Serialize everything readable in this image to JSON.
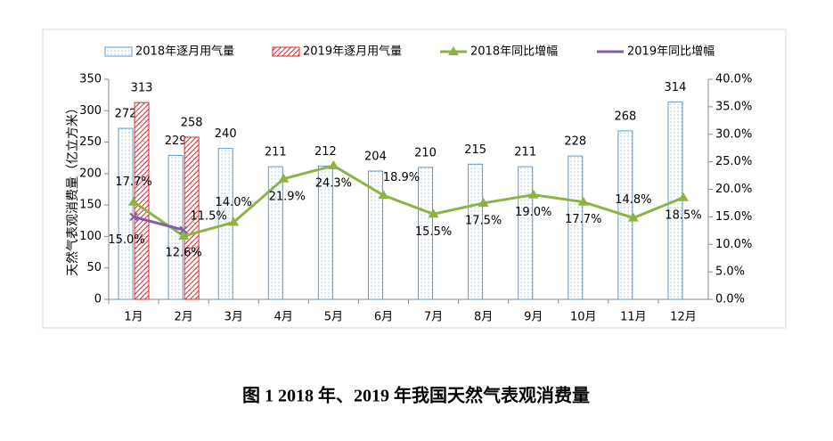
{
  "chart_data": {
    "type": "bar_line",
    "title": "图 1 2018 年、2019 年我国天然气表观消费量",
    "y_label": "天然气表观消费量（亿立方米）",
    "categories": [
      "1月",
      "2月",
      "3月",
      "4月",
      "5月",
      "6月",
      "7月",
      "8月",
      "9月",
      "10月",
      "11月",
      "12月"
    ],
    "ylim": [
      0,
      350
    ],
    "yticks": [
      0,
      50,
      100,
      150,
      200,
      250,
      300,
      350
    ],
    "y2lim": [
      0,
      40
    ],
    "y2ticks": [
      {
        "value": 0,
        "label": "0.0%"
      },
      {
        "value": 5,
        "label": "5.0%"
      },
      {
        "value": 10,
        "label": "10.0%"
      },
      {
        "value": 15,
        "label": "15.0%"
      },
      {
        "value": 20,
        "label": "20.0%"
      },
      {
        "value": 25,
        "label": "25.0%"
      },
      {
        "value": 30,
        "label": "30.0%"
      },
      {
        "value": 35,
        "label": "35.0%"
      },
      {
        "value": 40,
        "label": "40.0%"
      }
    ],
    "legend": "top",
    "series": [
      {
        "name": "2018年逐月用气量",
        "type": "bar",
        "color": "#5b9bd5",
        "values": [
          272,
          229,
          240,
          211,
          212,
          204,
          210,
          215,
          211,
          228,
          268,
          314
        ]
      },
      {
        "name": "2019年逐月用气量",
        "type": "bar",
        "color": "#e0262b",
        "values": [
          313,
          258,
          null,
          null,
          null,
          null,
          null,
          null,
          null,
          null,
          null,
          null
        ]
      },
      {
        "name": "2018年同比增幅",
        "type": "line",
        "axis": "y2",
        "color": "#8db346",
        "values": [
          17.7,
          11.5,
          14.0,
          21.9,
          24.3,
          18.9,
          15.5,
          17.5,
          19.0,
          17.7,
          14.8,
          18.5
        ],
        "value_labels": [
          "17.7%",
          "11.5%",
          "14.0%",
          "21.9%",
          "24.3%",
          "18.9%",
          "15.5%",
          "17.5%",
          "19.0%",
          "17.7%",
          "14.8%",
          "18.5%"
        ]
      },
      {
        "name": "2019年同比增幅",
        "type": "line",
        "axis": "y2",
        "color": "#7f5fa8",
        "values": [
          15.0,
          12.6,
          null,
          null,
          null,
          null,
          null,
          null,
          null,
          null,
          null,
          null
        ],
        "value_labels": [
          "15.0%",
          "12.6%",
          null,
          null,
          null,
          null,
          null,
          null,
          null,
          null,
          null,
          null
        ]
      }
    ]
  }
}
